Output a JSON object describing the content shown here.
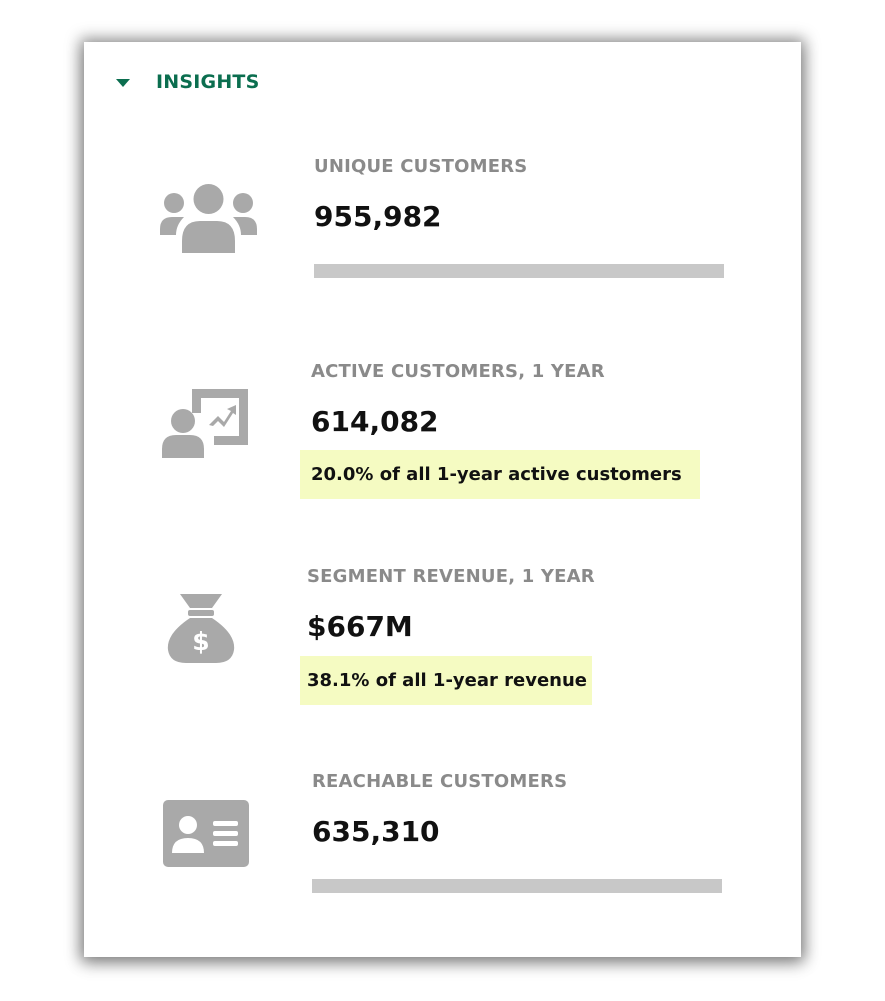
{
  "header": {
    "title": "INSIGHTS",
    "expanded": true
  },
  "metrics": [
    {
      "label": "UNIQUE CUSTOMERS",
      "value": "955,982",
      "icon": "users-group-icon"
    },
    {
      "label": "ACTIVE CUSTOMERS, 1 YEAR",
      "value": "614,082",
      "note": "20.0% of all 1-year active customers",
      "icon": "user-trend-chart-icon"
    },
    {
      "label": "SEGMENT REVENUE, 1 YEAR",
      "value": "$667M",
      "note": "38.1% of all 1-year revenue",
      "icon": "money-bag-icon"
    },
    {
      "label": "REACHABLE CUSTOMERS",
      "value": "635,310",
      "icon": "contact-card-icon"
    }
  ],
  "colors": {
    "accent": "#0b6e4f",
    "label": "#8a8a8a",
    "icon": "#a9a9a9",
    "highlight": "#f5fbc2",
    "placeholder": "#c8c8c8"
  }
}
